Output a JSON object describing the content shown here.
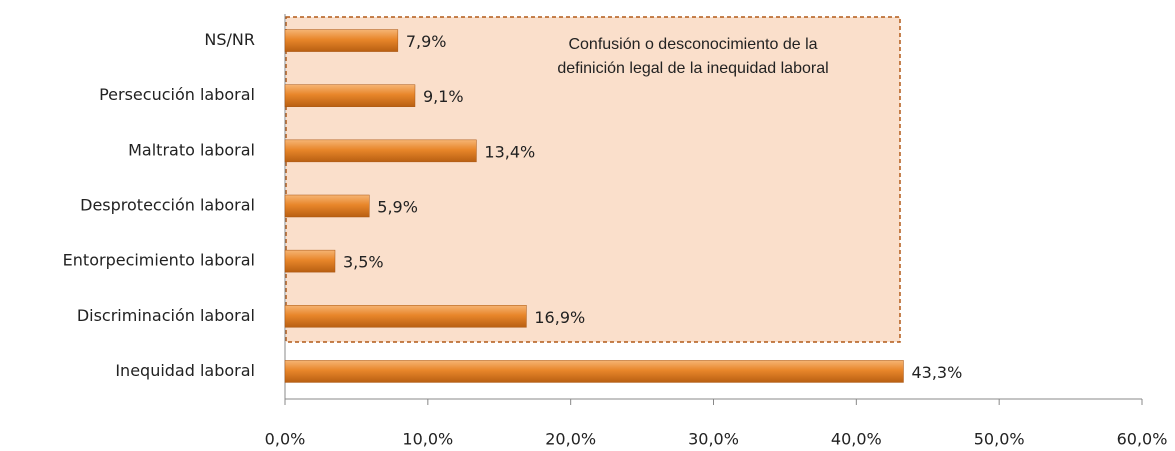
{
  "chart_data": {
    "type": "bar",
    "orientation": "horizontal",
    "categories": [
      "NS/NR",
      "Persecución laboral",
      "Maltrato laboral",
      "Desprotección laboral",
      "Entorpecimiento laboral",
      "Discriminación laboral",
      "Inequidad laboral"
    ],
    "values": [
      7.9,
      9.1,
      13.4,
      5.9,
      3.5,
      16.9,
      43.3
    ],
    "value_labels": [
      "7,9%",
      "9,1%",
      "13,4%",
      "5,9%",
      "3,5%",
      "16,9%",
      "43,3%"
    ],
    "color": "#e8862a",
    "xlim": [
      0,
      60
    ],
    "xticks": [
      {
        "value": 0,
        "label": "0,0%"
      },
      {
        "value": 10,
        "label": "10,0%"
      },
      {
        "value": 20,
        "label": "20,0%"
      },
      {
        "value": 30,
        "label": "30,0%"
      },
      {
        "value": 40,
        "label": "40,0%"
      },
      {
        "value": 50,
        "label": "50,0%"
      },
      {
        "value": 60,
        "label": "60,0%"
      }
    ],
    "annotation": [
      "Confusión o desconocimiento de la",
      "definición legal de la inequidad laboral"
    ]
  }
}
